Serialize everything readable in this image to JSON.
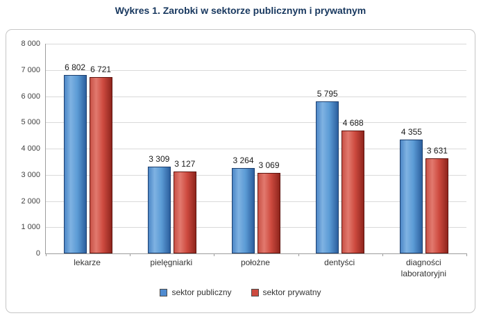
{
  "title": "Wykres 1. Zarobki w sektorze publicznym i prywatnym",
  "title_color": "#17375E",
  "chart_data": {
    "type": "bar",
    "categories": [
      "lekarze",
      "pielęgniarki",
      "położne",
      "dentyści",
      "diagności laboratoryjni"
    ],
    "series": [
      {
        "name": "sektor publiczny",
        "color": "#4f8bd0",
        "values": [
          6802,
          3309,
          3264,
          5795,
          4355
        ],
        "labels": [
          "6 802",
          "3 309",
          "3 264",
          "5 795",
          "4 355"
        ]
      },
      {
        "name": "sektor prywatny",
        "color": "#cc4a3f",
        "values": [
          6721,
          3127,
          3069,
          4688,
          3631
        ],
        "labels": [
          "6 721",
          "3 127",
          "3 069",
          "4 688",
          "3 631"
        ]
      }
    ],
    "ylim": [
      0,
      8000
    ],
    "y_ticks": [
      "8 000",
      "7 000",
      "6 000",
      "5 000",
      "4 000",
      "3 000",
      "2 000",
      "1 000",
      "0"
    ],
    "xlabel": "",
    "ylabel": "",
    "grid": true,
    "legend_position": "bottom"
  }
}
